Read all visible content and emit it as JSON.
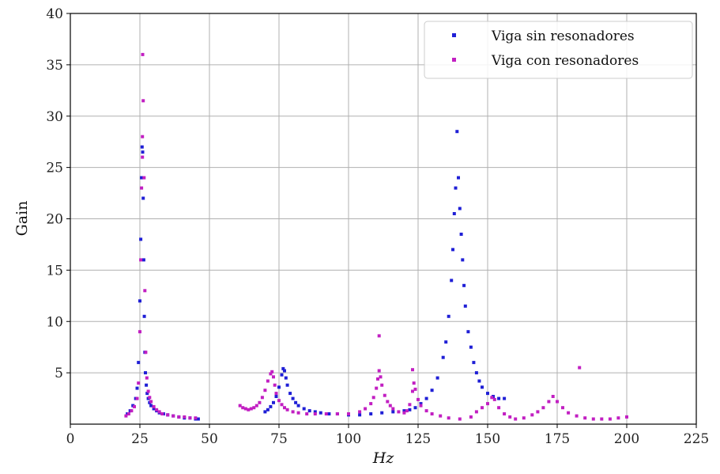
{
  "chart_data": {
    "type": "scatter",
    "title": "",
    "xlabel": "Hz",
    "ylabel": "Gain",
    "xlim": [
      0,
      225
    ],
    "ylim": [
      0,
      40
    ],
    "xticks": [
      "0",
      "25",
      "50",
      "75",
      "100",
      "125",
      "150",
      "175",
      "200",
      "225"
    ],
    "yticks": [
      "5",
      "10",
      "15",
      "20",
      "25",
      "30",
      "35",
      "40"
    ],
    "grid": true,
    "legend_position": "top-right",
    "series": [
      {
        "name": "Viga sin resonadores",
        "color": "#1f1fd6",
        "x": [
          20.5,
          21.5,
          22.5,
          23.5,
          24.0,
          24.5,
          25.0,
          25.3,
          25.6,
          25.8,
          26.0,
          26.2,
          26.4,
          26.6,
          26.8,
          27.0,
          27.3,
          27.6,
          28.0,
          28.5,
          29.0,
          30.0,
          31.0,
          32.0,
          33.5,
          35.0,
          37.0,
          39.0,
          41.0,
          43.0,
          45.0,
          46.0,
          70.0,
          71.0,
          72.0,
          73.0,
          74.0,
          75.0,
          76.0,
          76.5,
          77.0,
          77.5,
          78.0,
          79.0,
          80.0,
          81.0,
          82.0,
          84.0,
          86.0,
          88.0,
          90.0,
          93.0,
          96.0,
          100.0,
          104.0,
          108.0,
          112.0,
          116.0,
          120.0,
          122.0,
          124.0,
          126.0,
          128.0,
          130.0,
          132.0,
          134.0,
          135.0,
          136.0,
          137.0,
          137.5,
          138.0,
          138.5,
          139.0,
          139.5,
          140.0,
          140.5,
          141.0,
          141.5,
          142.0,
          143.0,
          144.0,
          145.0,
          146.0,
          147.0,
          148.0,
          150.0,
          152.0,
          154.0,
          156.0
        ],
        "y": [
          1.0,
          1.3,
          1.8,
          2.5,
          3.5,
          6.0,
          12.0,
          18.0,
          24.0,
          27.0,
          26.5,
          22.0,
          16.0,
          10.5,
          7.0,
          5.0,
          3.8,
          3.0,
          2.5,
          2.1,
          1.8,
          1.5,
          1.3,
          1.1,
          1.0,
          0.9,
          0.8,
          0.7,
          0.6,
          0.6,
          0.5,
          0.5,
          1.2,
          1.4,
          1.7,
          2.1,
          2.7,
          3.6,
          4.8,
          5.4,
          5.2,
          4.5,
          3.8,
          3.0,
          2.5,
          2.1,
          1.8,
          1.5,
          1.3,
          1.2,
          1.1,
          1.0,
          1.0,
          0.9,
          0.9,
          1.0,
          1.1,
          1.2,
          1.3,
          1.4,
          1.6,
          2.0,
          2.5,
          3.3,
          4.5,
          6.5,
          8.0,
          10.5,
          14.0,
          17.0,
          20.5,
          23.0,
          28.5,
          24.0,
          21.0,
          18.5,
          16.0,
          13.5,
          11.5,
          9.0,
          7.5,
          6.0,
          5.0,
          4.2,
          3.6,
          3.0,
          2.7,
          2.5,
          2.5
        ]
      },
      {
        "name": "Viga con resonadores",
        "color": "#c21fc2",
        "x": [
          20.0,
          21.0,
          22.0,
          23.0,
          24.0,
          24.5,
          25.0,
          25.3,
          25.6,
          25.9,
          26.2,
          26.5,
          26.8,
          27.1,
          27.5,
          28.0,
          28.5,
          29.0,
          30.0,
          31.0,
          32.0,
          33.0,
          35.0,
          37.0,
          39.0,
          41.0,
          43.0,
          45.0,
          61.0,
          62.0,
          63.0,
          64.0,
          65.0,
          66.0,
          67.0,
          68.0,
          69.0,
          70.0,
          71.0,
          72.0,
          72.5,
          73.0,
          73.5,
          74.0,
          75.0,
          76.0,
          77.0,
          78.0,
          80.0,
          82.0,
          85.0,
          88.0,
          92.0,
          96.0,
          100.0,
          104.0,
          106.0,
          108.0,
          109.0,
          110.0,
          110.5,
          111.0,
          111.5,
          112.0,
          113.0,
          114.0,
          115.0,
          116.0,
          118.0,
          120.0,
          121.0,
          122.0,
          123.0,
          123.5,
          124.0,
          125.0,
          126.0,
          128.0,
          130.0,
          133.0,
          136.0,
          140.0,
          144.0,
          146.0,
          148.0,
          150.0,
          151.5,
          152.5,
          154.0,
          156.0,
          158.0,
          160.0,
          163.0,
          166.0,
          168.0,
          170.0,
          172.0,
          173.5,
          175.0,
          177.0,
          179.0,
          182.0,
          185.0,
          188.0,
          191.0,
          194.0,
          197.0,
          200.0,
          183.0,
          111.0,
          123.0,
          26.0,
          25.9
        ],
        "y": [
          0.8,
          1.0,
          1.3,
          1.7,
          2.5,
          4.0,
          9.0,
          16.0,
          23.0,
          28.0,
          31.5,
          24.0,
          13.0,
          7.0,
          4.5,
          3.2,
          2.6,
          2.2,
          1.7,
          1.4,
          1.2,
          1.0,
          0.9,
          0.8,
          0.7,
          0.7,
          0.6,
          0.6,
          1.8,
          1.6,
          1.5,
          1.4,
          1.5,
          1.6,
          1.8,
          2.1,
          2.6,
          3.3,
          4.2,
          4.9,
          5.1,
          4.6,
          3.8,
          3.0,
          2.3,
          1.9,
          1.6,
          1.4,
          1.2,
          1.1,
          1.0,
          1.0,
          1.0,
          1.0,
          1.0,
          1.2,
          1.5,
          2.0,
          2.6,
          3.5,
          4.4,
          5.2,
          4.6,
          3.8,
          2.8,
          2.2,
          1.8,
          1.5,
          1.2,
          1.1,
          1.3,
          1.9,
          3.2,
          4.0,
          3.4,
          2.4,
          1.8,
          1.3,
          1.0,
          0.8,
          0.6,
          0.5,
          0.7,
          1.2,
          1.6,
          2.0,
          2.6,
          2.4,
          1.6,
          1.0,
          0.7,
          0.5,
          0.6,
          0.9,
          1.2,
          1.6,
          2.2,
          2.7,
          2.2,
          1.6,
          1.1,
          0.8,
          0.6,
          0.5,
          0.5,
          0.5,
          0.6,
          0.7,
          5.5,
          8.6,
          5.3,
          36.0,
          26.0
        ]
      }
    ]
  }
}
